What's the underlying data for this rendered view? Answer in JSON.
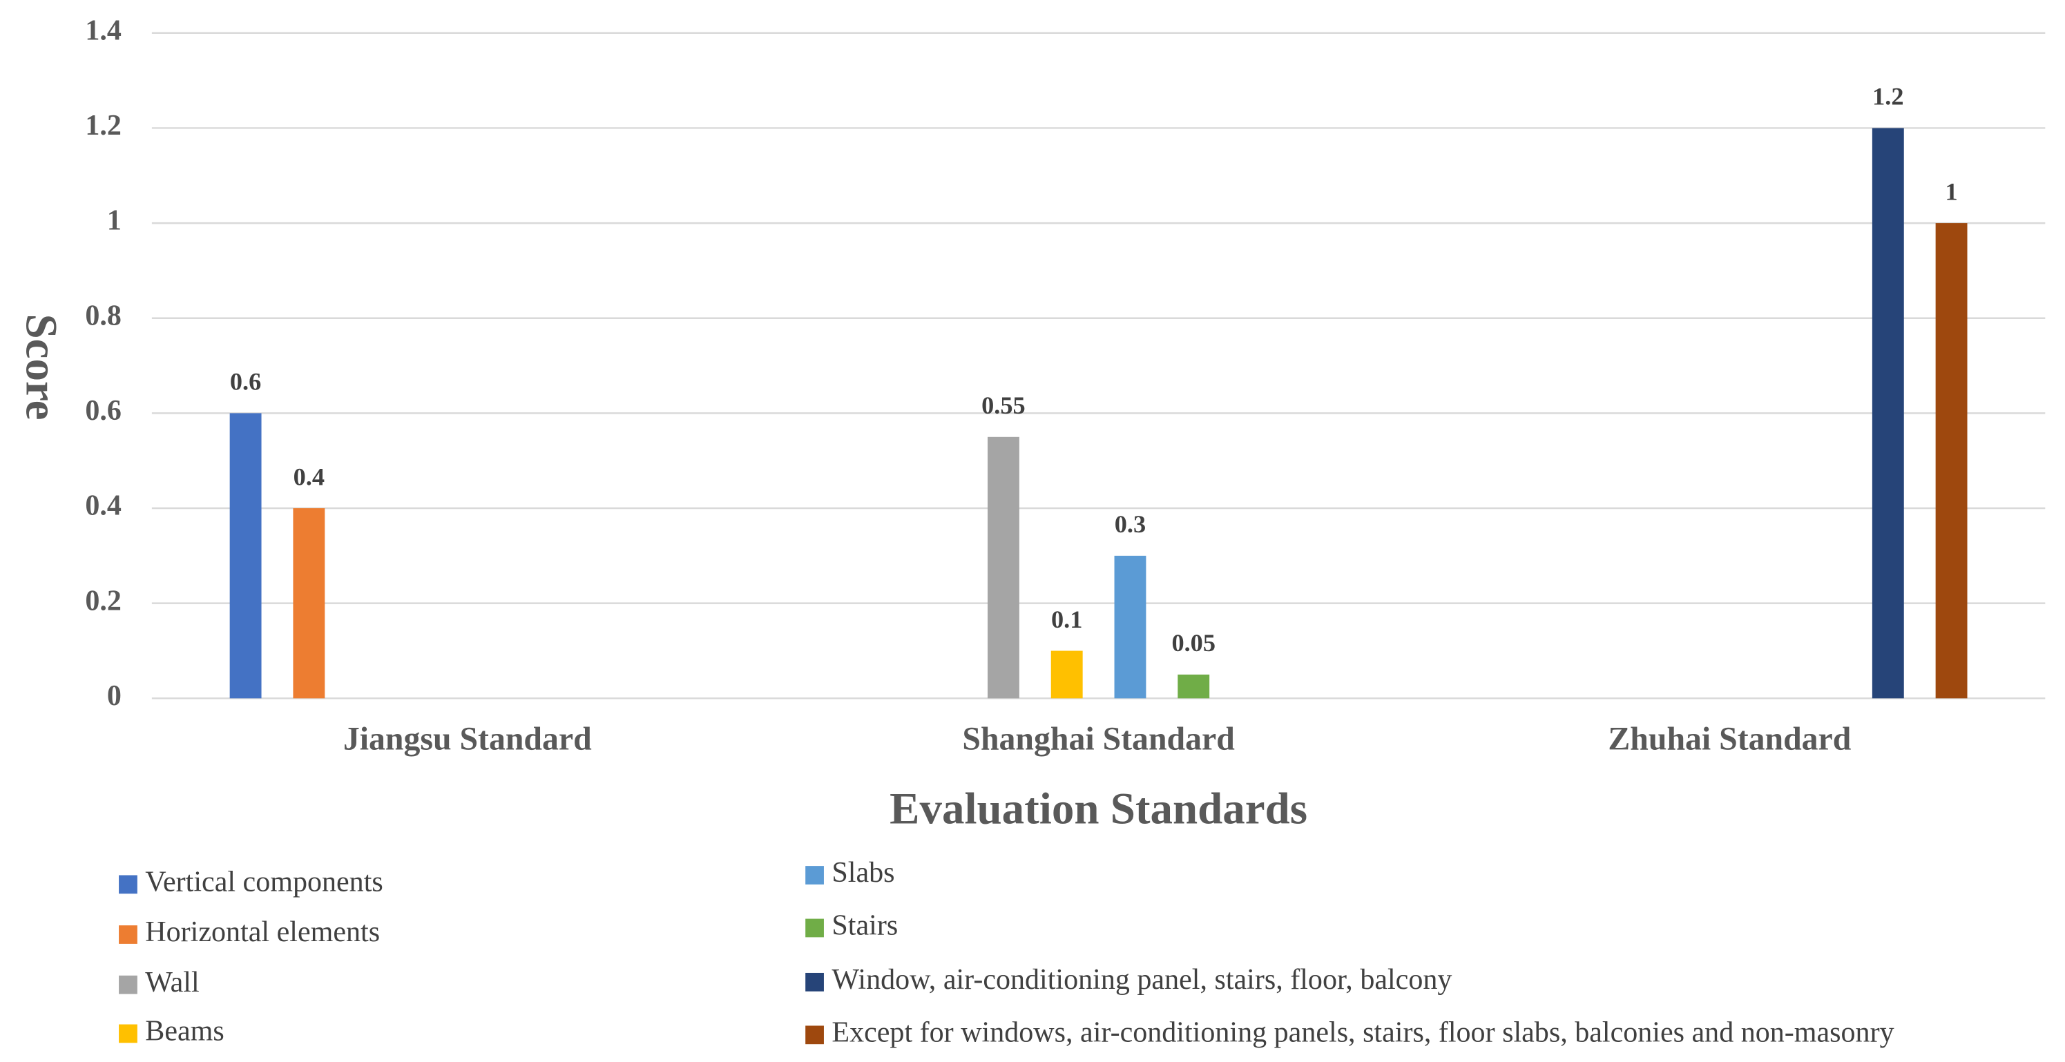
{
  "chart_data": {
    "type": "bar",
    "x_label": "Evaluation Standards",
    "y_label": "Score",
    "categories": [
      "Jiangsu Standard",
      "Shanghai Standard",
      "Zhuhai Standard"
    ],
    "series": [
      {
        "name": "Vertical components",
        "color": "#4472c4",
        "values": [
          0.6,
          null,
          null
        ]
      },
      {
        "name": "Horizontal elements",
        "color": "#ed7d31",
        "values": [
          0.4,
          null,
          null
        ]
      },
      {
        "name": "Wall",
        "color": "#a5a5a5",
        "values": [
          null,
          0.55,
          null
        ]
      },
      {
        "name": "Beams",
        "color": "#ffc000",
        "values": [
          null,
          0.1,
          null
        ]
      },
      {
        "name": "Slabs",
        "color": "#5b9bd5",
        "values": [
          null,
          0.3,
          null
        ]
      },
      {
        "name": "Stairs",
        "color": "#70ad47",
        "values": [
          null,
          0.05,
          null
        ]
      },
      {
        "name": "Window, air-conditioning panel, stairs, floor, balcony",
        "color": "#264478",
        "values": [
          null,
          null,
          1.2
        ]
      },
      {
        "name": "Except for windows, air-conditioning panels, stairs, floor slabs, balconies and non-masonry",
        "color": "#9e480e",
        "values": [
          null,
          null,
          1
        ]
      }
    ],
    "ylim": [
      0,
      1.4
    ],
    "yticks": [
      0,
      0.2,
      0.4,
      0.6,
      0.8,
      1,
      1.2,
      1.4
    ],
    "grid": true,
    "legend": "bottom"
  }
}
